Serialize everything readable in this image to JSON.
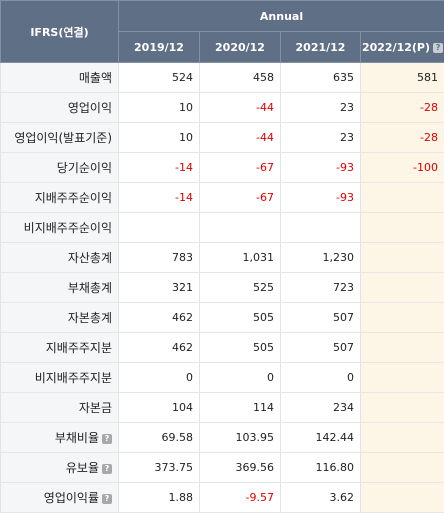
{
  "header": {
    "corner_label": "IFRS(연결)",
    "group_label": "Annual",
    "years": [
      "2019/12",
      "2020/12",
      "2021/12",
      "2022/12(P)"
    ]
  },
  "rows": [
    {
      "label": "매출액",
      "values": [
        "524",
        "458",
        "635",
        "581"
      ]
    },
    {
      "label": "영업이익",
      "values": [
        "10",
        "-44",
        "23",
        "-28"
      ]
    },
    {
      "label": "영업이익(발표기준)",
      "values": [
        "10",
        "-44",
        "23",
        "-28"
      ]
    },
    {
      "label": "당기순이익",
      "values": [
        "-14",
        "-67",
        "-93",
        "-100"
      ]
    },
    {
      "label": "지배주주순이익",
      "values": [
        "-14",
        "-67",
        "-93",
        ""
      ]
    },
    {
      "label": "비지배주주순이익",
      "values": [
        "",
        "",
        "",
        ""
      ]
    },
    {
      "label": "자산총계",
      "values": [
        "783",
        "1,031",
        "1,230",
        ""
      ]
    },
    {
      "label": "부채총계",
      "values": [
        "321",
        "525",
        "723",
        ""
      ]
    },
    {
      "label": "자본총계",
      "values": [
        "462",
        "505",
        "507",
        ""
      ]
    },
    {
      "label": "지배주주지분",
      "values": [
        "462",
        "505",
        "507",
        ""
      ]
    },
    {
      "label": "비지배주주지분",
      "values": [
        "0",
        "0",
        "0",
        ""
      ]
    },
    {
      "label": "자본금",
      "values": [
        "104",
        "114",
        "234",
        ""
      ]
    },
    {
      "label": "부채비율",
      "values": [
        "69.58",
        "103.95",
        "142.44",
        ""
      ]
    },
    {
      "label": "유보율",
      "values": [
        "373.75",
        "369.56",
        "116.80",
        ""
      ]
    },
    {
      "label": "영업이익률",
      "values": [
        "1.88",
        "-9.57",
        "3.62",
        ""
      ]
    }
  ],
  "colors": {
    "header_bg": "#5f6f86",
    "negative": "#e00000",
    "estimate_bg": "#fdf5e6",
    "label_bg": "#f5f6f8"
  },
  "icons": {
    "help": "?"
  }
}
